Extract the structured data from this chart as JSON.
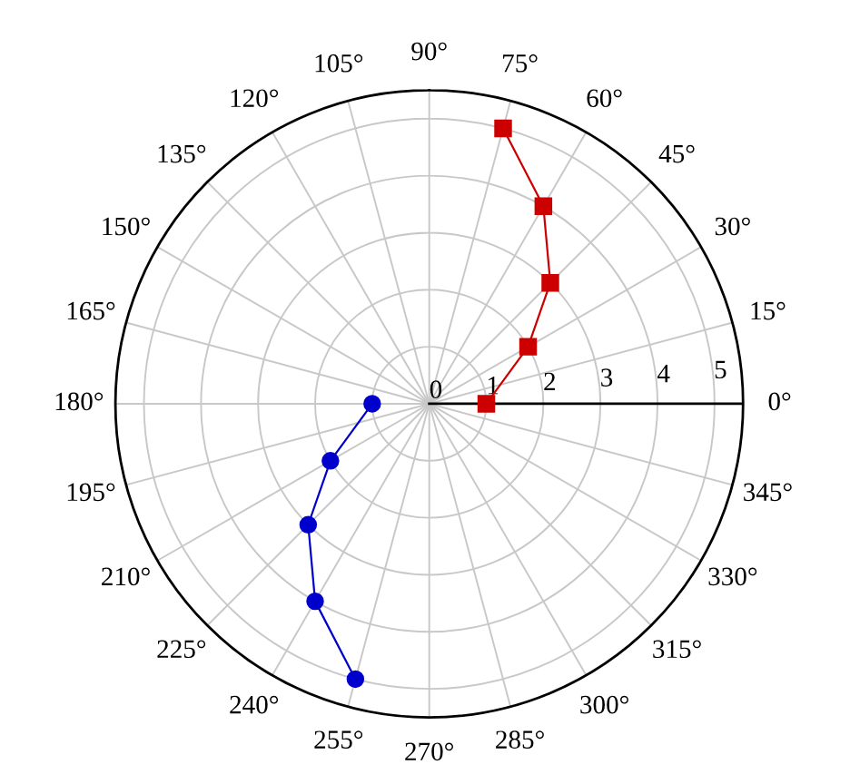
{
  "chart_data": {
    "type": "radar",
    "categories": [
      "90°",
      "75°",
      "60°",
      "45°",
      "30°",
      "15°",
      "0°",
      "345°",
      "330°",
      "315°",
      "300°",
      "285°",
      "270°",
      "255°",
      "240°",
      "225°",
      "210°",
      "195°",
      "180°",
      "165°",
      "150°",
      "135°",
      "120°",
      "105°"
    ],
    "series": [
      {
        "color": "#cc0000",
        "marker": "square",
        "values": [
          null,
          5,
          4,
          3,
          2,
          null,
          1,
          null,
          null,
          null,
          null,
          null,
          null,
          null,
          null,
          null,
          null,
          null,
          null,
          null,
          null,
          null,
          null,
          null
        ]
      },
      {
        "color": "#0000cc",
        "marker": "circle",
        "values": [
          null,
          null,
          null,
          null,
          null,
          null,
          null,
          null,
          null,
          null,
          null,
          null,
          null,
          5,
          4,
          3,
          2,
          null,
          1,
          null,
          null,
          null,
          null,
          null
        ]
      }
    ],
    "ylim": [
      0,
      5.5
    ],
    "yticks": [
      0,
      1,
      2,
      3,
      4,
      5
    ],
    "grid": true,
    "line_style": "solid"
  }
}
